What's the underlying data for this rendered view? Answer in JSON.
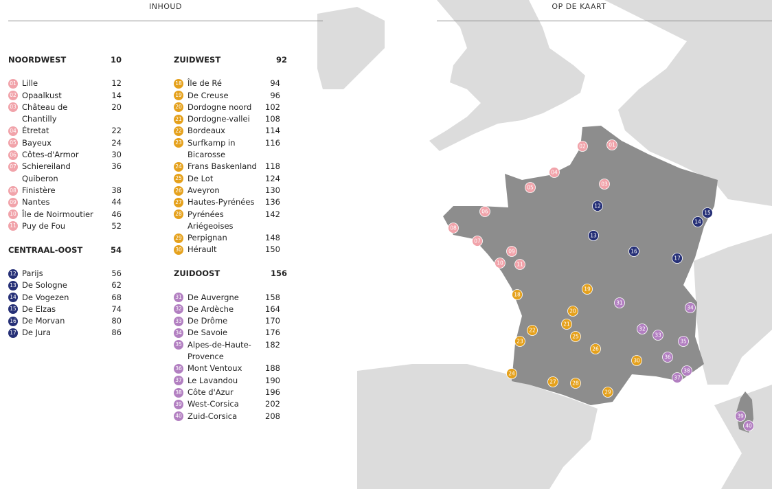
{
  "header": {
    "left": "INHOUD",
    "right": "OP DE KAART"
  },
  "columns": [
    {
      "sections": [
        {
          "title": "NOORDWEST",
          "page": 10,
          "color": "#f1a3aa",
          "items": [
            {
              "num": "01",
              "name": "Lille",
              "page": 12
            },
            {
              "num": "02",
              "name": "Opaalkust",
              "page": 14
            },
            {
              "num": "03",
              "name": "Château de Chantilly",
              "page": 20
            },
            {
              "num": "04",
              "name": "Étretat",
              "page": 22
            },
            {
              "num": "05",
              "name": "Bayeux",
              "page": 24
            },
            {
              "num": "06",
              "name": "Côtes-d'Armor",
              "page": 30
            },
            {
              "num": "07",
              "name": "Schiereiland Quiberon",
              "page": 36
            },
            {
              "num": "08",
              "name": "Finistère",
              "page": 38
            },
            {
              "num": "09",
              "name": "Nantes",
              "page": 44
            },
            {
              "num": "10",
              "name": "Île de Noirmoutier",
              "page": 46
            },
            {
              "num": "11",
              "name": "Puy de Fou",
              "page": 52
            }
          ]
        },
        {
          "title": "CENTRAAL-OOST",
          "page": 54,
          "color": "#263077",
          "items": [
            {
              "num": "12",
              "name": "Parijs",
              "page": 56
            },
            {
              "num": "13",
              "name": "De Sologne",
              "page": 62
            },
            {
              "num": "14",
              "name": "De Vogezen",
              "page": 68
            },
            {
              "num": "15",
              "name": "De Elzas",
              "page": 74
            },
            {
              "num": "16",
              "name": "De Morvan",
              "page": 80
            },
            {
              "num": "17",
              "name": "De Jura",
              "page": 86
            }
          ]
        }
      ]
    },
    {
      "sections": [
        {
          "title": "ZUIDWEST",
          "page": 92,
          "color": "#e5a11c",
          "items": [
            {
              "num": "18",
              "name": "Île de Ré",
              "page": 94
            },
            {
              "num": "19",
              "name": "De Creuse",
              "page": 96
            },
            {
              "num": "20",
              "name": "Dordogne noord",
              "page": 102
            },
            {
              "num": "21",
              "name": "Dordogne-vallei",
              "page": 108
            },
            {
              "num": "22",
              "name": "Bordeaux",
              "page": 114
            },
            {
              "num": "23",
              "name": "Surfkamp in Bicarosse",
              "page": 116
            },
            {
              "num": "24",
              "name": "Frans Baskenland",
              "page": 118
            },
            {
              "num": "25",
              "name": "De Lot",
              "page": 124
            },
            {
              "num": "26",
              "name": "Aveyron",
              "page": 130
            },
            {
              "num": "27",
              "name": "Hautes-Pyrénées",
              "page": 136
            },
            {
              "num": "28",
              "name": "Pyrénées Ariégeoises",
              "page": 142
            },
            {
              "num": "29",
              "name": "Perpignan",
              "page": 148
            },
            {
              "num": "30",
              "name": "Hérault",
              "page": 150
            }
          ]
        },
        {
          "title": "ZUIDOOST",
          "page": 156,
          "color": "#b27fc1",
          "items": [
            {
              "num": "31",
              "name": "De Auvergne",
              "page": 158
            },
            {
              "num": "32",
              "name": "De Ardèche",
              "page": 164
            },
            {
              "num": "33",
              "name": "De Drôme",
              "page": 170
            },
            {
              "num": "34",
              "name": "De Savoie",
              "page": 176
            },
            {
              "num": "35",
              "name": "Alpes-de-Haute-Provence",
              "page": 182
            },
            {
              "num": "36",
              "name": "Mont Ventoux",
              "page": 188
            },
            {
              "num": "37",
              "name": "Le Lavandou",
              "page": 190
            },
            {
              "num": "38",
              "name": "Côte d'Azur",
              "page": 196
            },
            {
              "num": "39",
              "name": "West-Corsica",
              "page": 202
            },
            {
              "num": "40",
              "name": "Zuid-Corsica",
              "page": 208
            }
          ]
        }
      ]
    }
  ]
}
